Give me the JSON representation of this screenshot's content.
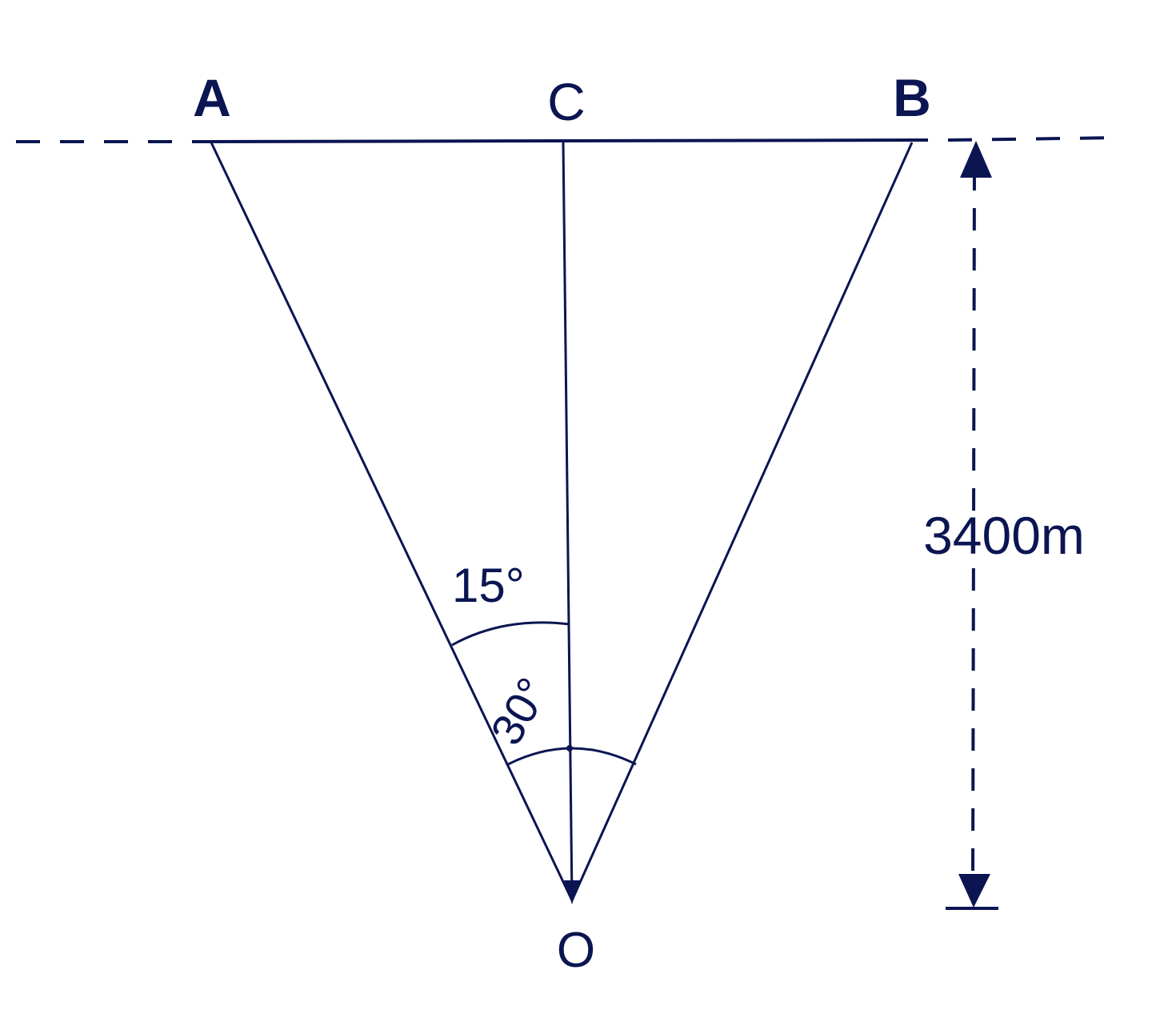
{
  "diagram": {
    "points": {
      "A": "A",
      "B": "B",
      "C": "C",
      "O": "O"
    },
    "angles": {
      "angle_AOC": "15°",
      "angle_COB": "30°"
    },
    "height_label": "3400m",
    "colors": {
      "line": "#0b1552",
      "background": "#ffffff"
    }
  }
}
